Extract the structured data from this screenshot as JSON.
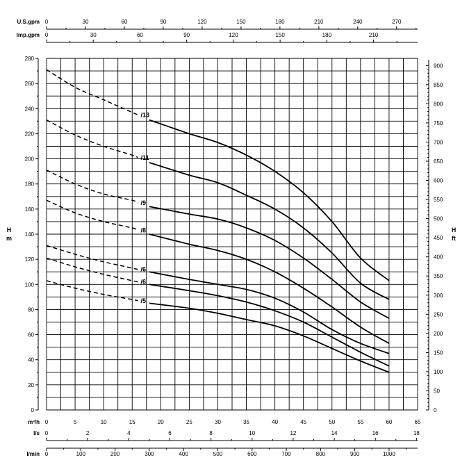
{
  "chart_data": {
    "type": "line",
    "title": "",
    "xlabel": "m³/h",
    "ylabel": "H m",
    "ylabel_right": "H ft",
    "xlim": [
      0,
      65
    ],
    "ylim": [
      0,
      280
    ],
    "grid": true,
    "primary_x": {
      "unit": "m³/h",
      "ticks": [
        0,
        5,
        10,
        15,
        20,
        25,
        30,
        35,
        40,
        45,
        50,
        55,
        60,
        65
      ]
    },
    "top_axes": [
      {
        "unit": "U.S.gpm",
        "factor": 4.4029,
        "ticks": [
          0,
          30,
          60,
          90,
          120,
          150,
          180,
          210,
          240,
          270
        ],
        "minor": 15
      },
      {
        "unit": "Imp.gpm",
        "factor": 3.6662,
        "ticks": [
          0,
          30,
          60,
          90,
          120,
          150,
          180,
          210
        ],
        "minor": 15
      }
    ],
    "bottom_axes": [
      {
        "unit": "l/s",
        "factor": 0.27778,
        "ticks": [
          0,
          2,
          4,
          6,
          8,
          10,
          12,
          14,
          16,
          18
        ],
        "minor": 1
      },
      {
        "unit": "l/min",
        "factor": 16.6667,
        "ticks": [
          0,
          100,
          200,
          300,
          400,
          500,
          600,
          700,
          800,
          900,
          1000
        ],
        "minor": 50
      }
    ],
    "left_y": {
      "unit_line1": "H",
      "unit_line2": "m",
      "ticks": [
        0,
        20,
        40,
        60,
        80,
        100,
        120,
        140,
        160,
        180,
        200,
        220,
        240,
        260,
        280
      ],
      "minor": 10
    },
    "right_y": {
      "unit_line1": "H",
      "unit_line2": "ft",
      "factor": 3.28084,
      "ticks": [
        0,
        50,
        100,
        150,
        200,
        250,
        300,
        350,
        400,
        450,
        500,
        550,
        600,
        650,
        700,
        750,
        800,
        850,
        900
      ]
    },
    "series": [
      {
        "name": "/13",
        "dashed": [
          [
            0,
            271
          ],
          [
            5,
            257
          ],
          [
            10,
            247
          ],
          [
            15,
            237
          ],
          [
            16,
            235
          ]
        ],
        "solid": [
          [
            18,
            231
          ],
          [
            25,
            220
          ],
          [
            30,
            213
          ],
          [
            35,
            203
          ],
          [
            40,
            190
          ],
          [
            45,
            173
          ],
          [
            50,
            150
          ],
          [
            55,
            121
          ],
          [
            60,
            103
          ]
        ]
      },
      {
        "name": "/11",
        "dashed": [
          [
            0,
            231
          ],
          [
            5,
            219
          ],
          [
            10,
            210
          ],
          [
            15,
            203
          ],
          [
            16,
            201
          ]
        ],
        "solid": [
          [
            18,
            197
          ],
          [
            25,
            187
          ],
          [
            30,
            181
          ],
          [
            35,
            171
          ],
          [
            40,
            160
          ],
          [
            45,
            145
          ],
          [
            50,
            125
          ],
          [
            55,
            101
          ],
          [
            60,
            88
          ]
        ]
      },
      {
        "name": "/9",
        "dashed": [
          [
            0,
            191
          ],
          [
            5,
            180
          ],
          [
            10,
            172
          ],
          [
            15,
            167
          ],
          [
            16,
            165
          ]
        ],
        "solid": [
          [
            18,
            162
          ],
          [
            25,
            156
          ],
          [
            30,
            152
          ],
          [
            35,
            145
          ],
          [
            40,
            135
          ],
          [
            45,
            121
          ],
          [
            50,
            104
          ],
          [
            55,
            86
          ],
          [
            60,
            73
          ]
        ]
      },
      {
        "name": "/8",
        "dashed": [
          [
            0,
            167
          ],
          [
            5,
            157
          ],
          [
            10,
            150
          ],
          [
            15,
            145
          ],
          [
            16,
            143
          ]
        ],
        "solid": [
          [
            18,
            140
          ],
          [
            25,
            132
          ],
          [
            30,
            127
          ],
          [
            35,
            120
          ],
          [
            40,
            110
          ],
          [
            45,
            97
          ],
          [
            50,
            82
          ],
          [
            55,
            66
          ],
          [
            60,
            53
          ]
        ]
      },
      {
        "name": "/6",
        "dashed": [
          [
            0,
            131
          ],
          [
            5,
            124
          ],
          [
            10,
            118
          ],
          [
            15,
            113
          ],
          [
            16,
            112
          ]
        ],
        "solid": [
          [
            18,
            110
          ],
          [
            25,
            104
          ],
          [
            30,
            100
          ],
          [
            35,
            96
          ],
          [
            40,
            89
          ],
          [
            45,
            78
          ],
          [
            50,
            64
          ],
          [
            55,
            53
          ],
          [
            60,
            45
          ]
        ]
      },
      {
        "name": "/6",
        "dashed": [
          [
            0,
            121
          ],
          [
            5,
            114
          ],
          [
            10,
            108
          ],
          [
            15,
            103
          ],
          [
            16,
            102
          ]
        ],
        "solid": [
          [
            18,
            100
          ],
          [
            25,
            95
          ],
          [
            30,
            91
          ],
          [
            35,
            86
          ],
          [
            40,
            79
          ],
          [
            45,
            70
          ],
          [
            50,
            58
          ],
          [
            55,
            46
          ],
          [
            60,
            35
          ]
        ]
      },
      {
        "name": "/5",
        "dashed": [
          [
            0,
            103
          ],
          [
            5,
            97
          ],
          [
            10,
            92
          ],
          [
            15,
            88
          ],
          [
            16,
            87
          ]
        ],
        "solid": [
          [
            18,
            85
          ],
          [
            25,
            81
          ],
          [
            30,
            77
          ],
          [
            35,
            72
          ],
          [
            40,
            67
          ],
          [
            45,
            59
          ],
          [
            50,
            49
          ],
          [
            55,
            39
          ],
          [
            60,
            30
          ]
        ]
      }
    ]
  }
}
